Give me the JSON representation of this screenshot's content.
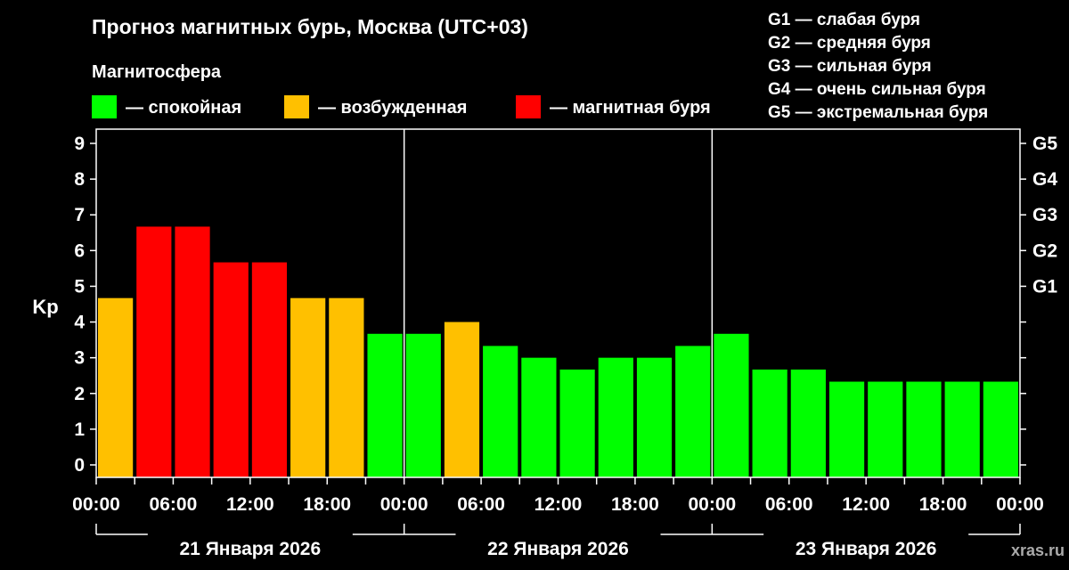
{
  "header": {
    "title": "Прогноз магнитных бурь, Москва (UTC+03)",
    "subtitle": "Магнитосфера"
  },
  "legend": [
    {
      "label": "— спокойная",
      "color": "#00ff00"
    },
    {
      "label": "— возбужденная",
      "color": "#ffc000"
    },
    {
      "label": "— магнитная буря",
      "color": "#ff0000"
    }
  ],
  "g_scale": [
    "G1 — слабая буря",
    "G2 — средняя буря",
    "G3 — сильная буря",
    "G4 — очень сильная буря",
    "G5 — экстремальная буря"
  ],
  "source": "xras.ru",
  "chart_data": {
    "type": "bar",
    "ylabel": "Kp",
    "ylim": [
      0,
      9
    ],
    "y_ticks": [
      "0",
      "1",
      "2",
      "3",
      "4",
      "5",
      "6",
      "7",
      "8",
      "9"
    ],
    "right_axis": [
      {
        "label": "G1",
        "kp": 5
      },
      {
        "label": "G2",
        "kp": 6
      },
      {
        "label": "G3",
        "kp": 7
      },
      {
        "label": "G4",
        "kp": 8
      },
      {
        "label": "G5",
        "kp": 9
      }
    ],
    "x_tick_labels": [
      "00:00",
      "06:00",
      "12:00",
      "18:00",
      "00:00",
      "06:00",
      "12:00",
      "18:00",
      "00:00",
      "06:00",
      "12:00",
      "18:00",
      "00:00"
    ],
    "days": [
      "21 Января 2026",
      "22 Января 2026",
      "23 Января 2026"
    ],
    "interval_hours": 3,
    "values": [
      4.67,
      6.67,
      6.67,
      5.67,
      5.67,
      4.67,
      4.67,
      3.67,
      3.67,
      4.0,
      3.33,
      3.0,
      2.67,
      3.0,
      3.0,
      3.33,
      3.67,
      2.67,
      2.67,
      2.33,
      2.33,
      2.33,
      2.33,
      2.33
    ],
    "colors": [
      "#ffc000",
      "#ff0000",
      "#ff0000",
      "#ff0000",
      "#ff0000",
      "#ffc000",
      "#ffc000",
      "#00ff00",
      "#00ff00",
      "#ffc000",
      "#00ff00",
      "#00ff00",
      "#00ff00",
      "#00ff00",
      "#00ff00",
      "#00ff00",
      "#00ff00",
      "#00ff00",
      "#00ff00",
      "#00ff00",
      "#00ff00",
      "#00ff00",
      "#00ff00",
      "#00ff00"
    ],
    "grid": false
  }
}
